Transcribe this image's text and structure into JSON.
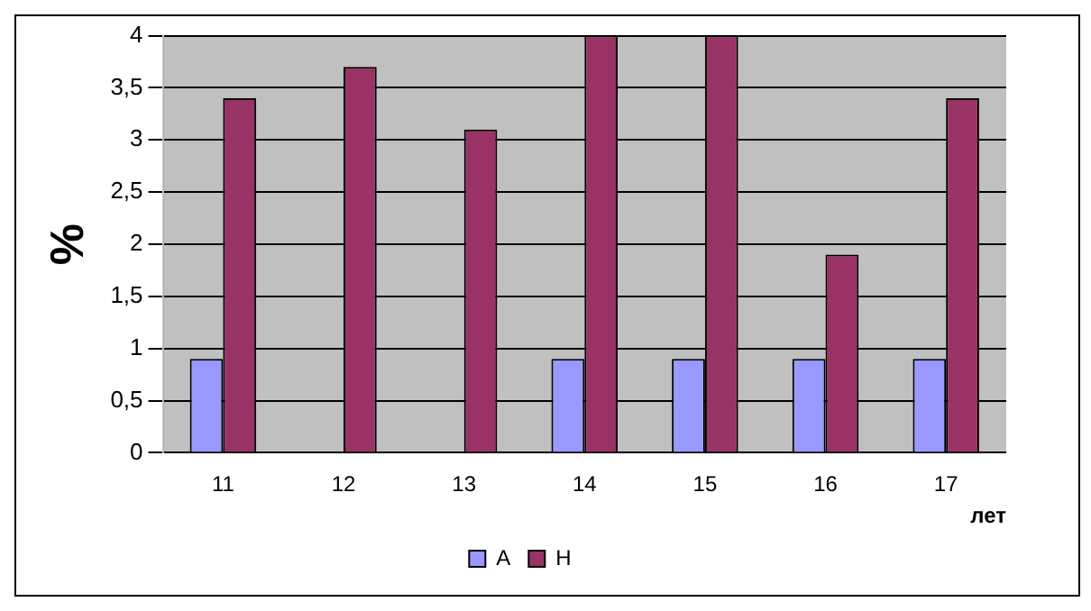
{
  "chart_data": {
    "type": "bar",
    "ylabel": "%",
    "xlabel": "лет",
    "categories": [
      "11",
      "12",
      "13",
      "14",
      "15",
      "16",
      "17"
    ],
    "series": [
      {
        "name": "А",
        "color": "#9999ff",
        "values": [
          0.9,
          0,
          0,
          0.9,
          0.9,
          0.9,
          0.9
        ]
      },
      {
        "name": "Н",
        "color": "#993366",
        "values": [
          3.4,
          3.7,
          3.1,
          4,
          4,
          1.9,
          3.4
        ]
      }
    ],
    "ylim": [
      0,
      4
    ],
    "yticks": [
      0,
      {
        "value": 0.5,
        "label": "0,5"
      },
      1,
      {
        "value": 1.5,
        "label": "1,5"
      },
      2,
      {
        "value": 2.5,
        "label": "2,5"
      },
      3,
      {
        "value": 3.5,
        "label": "3,5"
      },
      4
    ],
    "grid": "y",
    "legend": "bottom"
  }
}
